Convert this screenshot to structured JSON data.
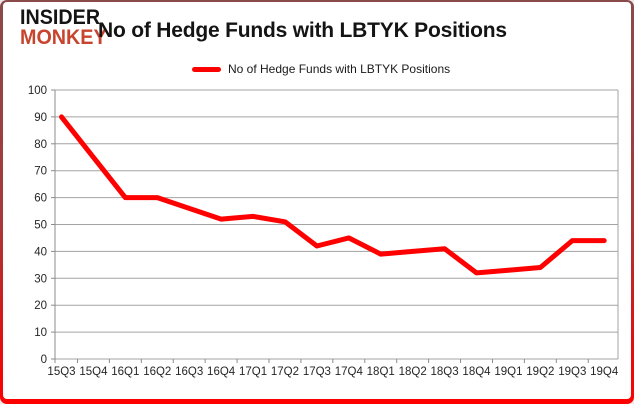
{
  "logo": {
    "line1": "INSIDER",
    "line2": "MONKEY"
  },
  "header": {
    "title": "No of Hedge Funds with LBTYK Positions"
  },
  "legend": {
    "label": "No of Hedge Funds with LBTYK Positions"
  },
  "colors": {
    "series": "#FF0000",
    "logo_monkey": "#C7452F",
    "grid": "#A3A3A3",
    "axis": "#8C8C8C",
    "tick_text": "#262626",
    "frame_top": "#8A4A4A",
    "frame_bottom": "#FF0000",
    "background": "#FFFFFF"
  },
  "chart_data": {
    "type": "line",
    "title": "No of Hedge Funds with LBTYK Positions",
    "categories": [
      "15Q3",
      "15Q4",
      "16Q1",
      "16Q2",
      "16Q3",
      "16Q4",
      "17Q1",
      "17Q2",
      "17Q3",
      "17Q4",
      "18Q1",
      "18Q2",
      "18Q3",
      "18Q4",
      "19Q1",
      "19Q2",
      "19Q3",
      "19Q4"
    ],
    "series": [
      {
        "name": "No of Hedge Funds with LBTYK Positions",
        "color": "#FF0000",
        "values": [
          90,
          75,
          60,
          60,
          56,
          52,
          53,
          51,
          42,
          45,
          39,
          40,
          41,
          32,
          33,
          34,
          44,
          44
        ]
      }
    ],
    "xlabel": "",
    "ylabel": "",
    "ylim": [
      0,
      100
    ],
    "ytick_step": 10,
    "grid": "horizontal",
    "legend_position": "top-center"
  }
}
